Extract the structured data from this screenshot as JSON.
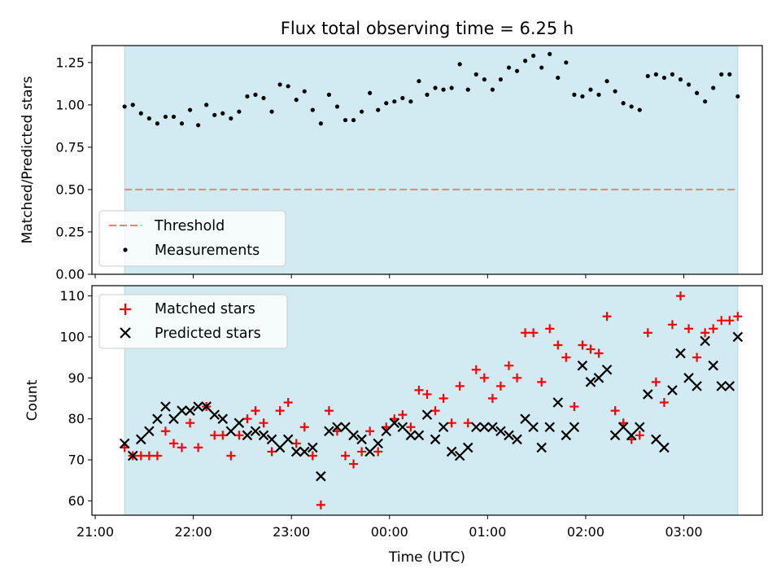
{
  "chart_data": [
    {
      "type": "scatter",
      "title": "Flux total observing time = 6.25 h",
      "ylabel": "Matched/Predicted stars",
      "xlabel": "",
      "ylim": [
        0,
        1.35
      ],
      "yticks": [
        0.0,
        0.25,
        0.5,
        0.75,
        1.0,
        1.25
      ],
      "yticklabels": [
        "0.00",
        "0.25",
        "0.50",
        "0.75",
        "1.00",
        "1.25"
      ],
      "observing_window": {
        "start": "21:18",
        "end": "03:33",
        "color": "#add8e6"
      },
      "threshold": {
        "name": "Threshold",
        "value": 0.5,
        "color": "#f08080",
        "style": "dashed"
      },
      "series": [
        {
          "name": "Measurements",
          "marker": "dot",
          "color": "#000000",
          "points": [
            [
              "21:18",
              0.99
            ],
            [
              "21:23",
              1.0
            ],
            [
              "21:28",
              0.95
            ],
            [
              "21:33",
              0.92
            ],
            [
              "21:38",
              0.89
            ],
            [
              "21:43",
              0.93
            ],
            [
              "21:48",
              0.93
            ],
            [
              "21:53",
              0.89
            ],
            [
              "21:58",
              0.97
            ],
            [
              "22:03",
              0.88
            ],
            [
              "22:08",
              1.0
            ],
            [
              "22:13",
              0.94
            ],
            [
              "22:18",
              0.95
            ],
            [
              "22:23",
              0.92
            ],
            [
              "22:28",
              0.96
            ],
            [
              "22:33",
              1.05
            ],
            [
              "22:38",
              1.06
            ],
            [
              "22:43",
              1.04
            ],
            [
              "22:48",
              0.96
            ],
            [
              "22:53",
              1.12
            ],
            [
              "22:58",
              1.11
            ],
            [
              "23:03",
              1.03
            ],
            [
              "23:08",
              1.08
            ],
            [
              "23:13",
              0.97
            ],
            [
              "23:18",
              0.89
            ],
            [
              "23:23",
              1.06
            ],
            [
              "23:28",
              0.99
            ],
            [
              "23:33",
              0.91
            ],
            [
              "23:38",
              0.91
            ],
            [
              "23:43",
              0.96
            ],
            [
              "23:48",
              1.07
            ],
            [
              "23:53",
              0.97
            ],
            [
              "23:58",
              1.01
            ],
            [
              "00:03",
              1.02
            ],
            [
              "00:08",
              1.04
            ],
            [
              "00:13",
              1.02
            ],
            [
              "00:18",
              1.14
            ],
            [
              "00:23",
              1.06
            ],
            [
              "00:28",
              1.1
            ],
            [
              "00:33",
              1.09
            ],
            [
              "00:38",
              1.1
            ],
            [
              "00:43",
              1.24
            ],
            [
              "00:48",
              1.09
            ],
            [
              "00:53",
              1.18
            ],
            [
              "00:58",
              1.15
            ],
            [
              "01:03",
              1.09
            ],
            [
              "01:08",
              1.15
            ],
            [
              "01:13",
              1.22
            ],
            [
              "01:18",
              1.2
            ],
            [
              "01:23",
              1.26
            ],
            [
              "01:28",
              1.29
            ],
            [
              "01:33",
              1.22
            ],
            [
              "01:38",
              1.3
            ],
            [
              "01:43",
              1.16
            ],
            [
              "01:48",
              1.25
            ],
            [
              "01:53",
              1.06
            ],
            [
              "01:58",
              1.05
            ],
            [
              "02:03",
              1.09
            ],
            [
              "02:08",
              1.06
            ],
            [
              "02:13",
              1.14
            ],
            [
              "02:18",
              1.08
            ],
            [
              "02:23",
              1.01
            ],
            [
              "02:28",
              0.99
            ],
            [
              "02:33",
              0.97
            ],
            [
              "02:38",
              1.17
            ],
            [
              "02:43",
              1.18
            ],
            [
              "02:48",
              1.16
            ],
            [
              "02:53",
              1.18
            ],
            [
              "02:58",
              1.15
            ],
            [
              "03:03",
              1.12
            ],
            [
              "03:08",
              1.07
            ],
            [
              "03:13",
              1.02
            ],
            [
              "03:18",
              1.1
            ],
            [
              "03:23",
              1.18
            ],
            [
              "03:28",
              1.18
            ],
            [
              "03:33",
              1.05
            ]
          ]
        }
      ],
      "legend": {
        "placement": "lower-left",
        "entries": [
          "Threshold",
          "Measurements"
        ]
      }
    },
    {
      "type": "scatter",
      "title": "",
      "ylabel": "Count",
      "xlabel": "Time (UTC)",
      "xlim": [
        "20:58",
        "03:48"
      ],
      "xticks": [
        "21:00",
        "22:00",
        "23:00",
        "00:00",
        "01:00",
        "02:00",
        "03:00"
      ],
      "ylim": [
        56.5,
        112.5
      ],
      "yticks": [
        60,
        70,
        80,
        90,
        100,
        110
      ],
      "observing_window": {
        "start": "21:18",
        "end": "03:33",
        "color": "#add8e6"
      },
      "series": [
        {
          "name": "Matched stars",
          "marker": "plus",
          "color": "#ff0000",
          "points": [
            [
              "21:18",
              73
            ],
            [
              "21:23",
              71
            ],
            [
              "21:28",
              71
            ],
            [
              "21:33",
              71
            ],
            [
              "21:38",
              71
            ],
            [
              "21:43",
              77
            ],
            [
              "21:48",
              74
            ],
            [
              "21:53",
              73
            ],
            [
              "21:58",
              79
            ],
            [
              "22:03",
              73
            ],
            [
              "22:08",
              83
            ],
            [
              "22:13",
              76
            ],
            [
              "22:18",
              76
            ],
            [
              "22:23",
              71
            ],
            [
              "22:28",
              76
            ],
            [
              "22:33",
              80
            ],
            [
              "22:38",
              82
            ],
            [
              "22:43",
              79
            ],
            [
              "22:48",
              72
            ],
            [
              "22:53",
              82
            ],
            [
              "22:58",
              84
            ],
            [
              "23:03",
              74
            ],
            [
              "23:08",
              78
            ],
            [
              "23:13",
              71
            ],
            [
              "23:18",
              59
            ],
            [
              "23:23",
              82
            ],
            [
              "23:28",
              77
            ],
            [
              "23:33",
              71
            ],
            [
              "23:38",
              69
            ],
            [
              "23:43",
              72
            ],
            [
              "23:48",
              77
            ],
            [
              "23:53",
              72
            ],
            [
              "23:58",
              78
            ],
            [
              "00:03",
              80
            ],
            [
              "00:08",
              81
            ],
            [
              "00:13",
              78
            ],
            [
              "00:18",
              87
            ],
            [
              "00:23",
              86
            ],
            [
              "00:28",
              82
            ],
            [
              "00:33",
              85
            ],
            [
              "00:38",
              79
            ],
            [
              "00:43",
              88
            ],
            [
              "00:48",
              79
            ],
            [
              "00:53",
              92
            ],
            [
              "00:58",
              90
            ],
            [
              "01:03",
              85
            ],
            [
              "01:08",
              88
            ],
            [
              "01:13",
              93
            ],
            [
              "01:18",
              90
            ],
            [
              "01:23",
              101
            ],
            [
              "01:28",
              101
            ],
            [
              "01:33",
              89
            ],
            [
              "01:38",
              102
            ],
            [
              "01:43",
              98
            ],
            [
              "01:48",
              95
            ],
            [
              "01:53",
              83
            ],
            [
              "01:58",
              98
            ],
            [
              "02:03",
              97
            ],
            [
              "02:08",
              96
            ],
            [
              "02:13",
              105
            ],
            [
              "02:18",
              82
            ],
            [
              "02:23",
              79
            ],
            [
              "02:28",
              75
            ],
            [
              "02:33",
              76
            ],
            [
              "02:38",
              101
            ],
            [
              "02:43",
              89
            ],
            [
              "02:48",
              84
            ],
            [
              "02:53",
              103
            ],
            [
              "02:58",
              110
            ],
            [
              "03:03",
              102
            ],
            [
              "03:08",
              95
            ],
            [
              "03:13",
              101
            ],
            [
              "03:18",
              102
            ],
            [
              "03:23",
              104
            ],
            [
              "03:28",
              104
            ],
            [
              "03:33",
              105
            ]
          ]
        },
        {
          "name": "Predicted stars",
          "marker": "x",
          "color": "#000000",
          "points": [
            [
              "21:18",
              74
            ],
            [
              "21:23",
              71
            ],
            [
              "21:28",
              75
            ],
            [
              "21:33",
              77
            ],
            [
              "21:38",
              80
            ],
            [
              "21:43",
              83
            ],
            [
              "21:48",
              80
            ],
            [
              "21:53",
              82
            ],
            [
              "21:58",
              82
            ],
            [
              "22:03",
              83
            ],
            [
              "22:08",
              83
            ],
            [
              "22:13",
              81
            ],
            [
              "22:18",
              80
            ],
            [
              "22:23",
              77
            ],
            [
              "22:28",
              79
            ],
            [
              "22:33",
              76
            ],
            [
              "22:38",
              77
            ],
            [
              "22:43",
              76
            ],
            [
              "22:48",
              75
            ],
            [
              "22:53",
              73
            ],
            [
              "22:58",
              75
            ],
            [
              "23:03",
              72
            ],
            [
              "23:08",
              72
            ],
            [
              "23:13",
              73
            ],
            [
              "23:18",
              66
            ],
            [
              "23:23",
              77
            ],
            [
              "23:28",
              78
            ],
            [
              "23:33",
              78
            ],
            [
              "23:38",
              76
            ],
            [
              "23:43",
              75
            ],
            [
              "23:48",
              72
            ],
            [
              "23:53",
              74
            ],
            [
              "23:58",
              77
            ],
            [
              "00:03",
              79
            ],
            [
              "00:08",
              78
            ],
            [
              "00:13",
              76
            ],
            [
              "00:18",
              76
            ],
            [
              "00:23",
              81
            ],
            [
              "00:28",
              75
            ],
            [
              "00:33",
              78
            ],
            [
              "00:38",
              72
            ],
            [
              "00:43",
              71
            ],
            [
              "00:48",
              73
            ],
            [
              "00:53",
              78
            ],
            [
              "00:58",
              78
            ],
            [
              "01:03",
              78
            ],
            [
              "01:08",
              77
            ],
            [
              "01:13",
              76
            ],
            [
              "01:18",
              75
            ],
            [
              "01:23",
              80
            ],
            [
              "01:28",
              78
            ],
            [
              "01:33",
              73
            ],
            [
              "01:38",
              78
            ],
            [
              "01:43",
              84
            ],
            [
              "01:48",
              76
            ],
            [
              "01:53",
              78
            ],
            [
              "01:58",
              93
            ],
            [
              "02:03",
              89
            ],
            [
              "02:08",
              90
            ],
            [
              "02:13",
              92
            ],
            [
              "02:18",
              76
            ],
            [
              "02:23",
              78
            ],
            [
              "02:28",
              76
            ],
            [
              "02:33",
              78
            ],
            [
              "02:38",
              86
            ],
            [
              "02:43",
              75
            ],
            [
              "02:48",
              73
            ],
            [
              "02:53",
              87
            ],
            [
              "02:58",
              96
            ],
            [
              "03:03",
              90
            ],
            [
              "03:08",
              88
            ],
            [
              "03:13",
              99
            ],
            [
              "03:18",
              93
            ],
            [
              "03:23",
              88
            ],
            [
              "03:28",
              88
            ],
            [
              "03:33",
              100
            ]
          ]
        }
      ],
      "legend": {
        "placement": "upper-left",
        "entries": [
          "Matched stars",
          "Predicted stars"
        ]
      }
    }
  ]
}
